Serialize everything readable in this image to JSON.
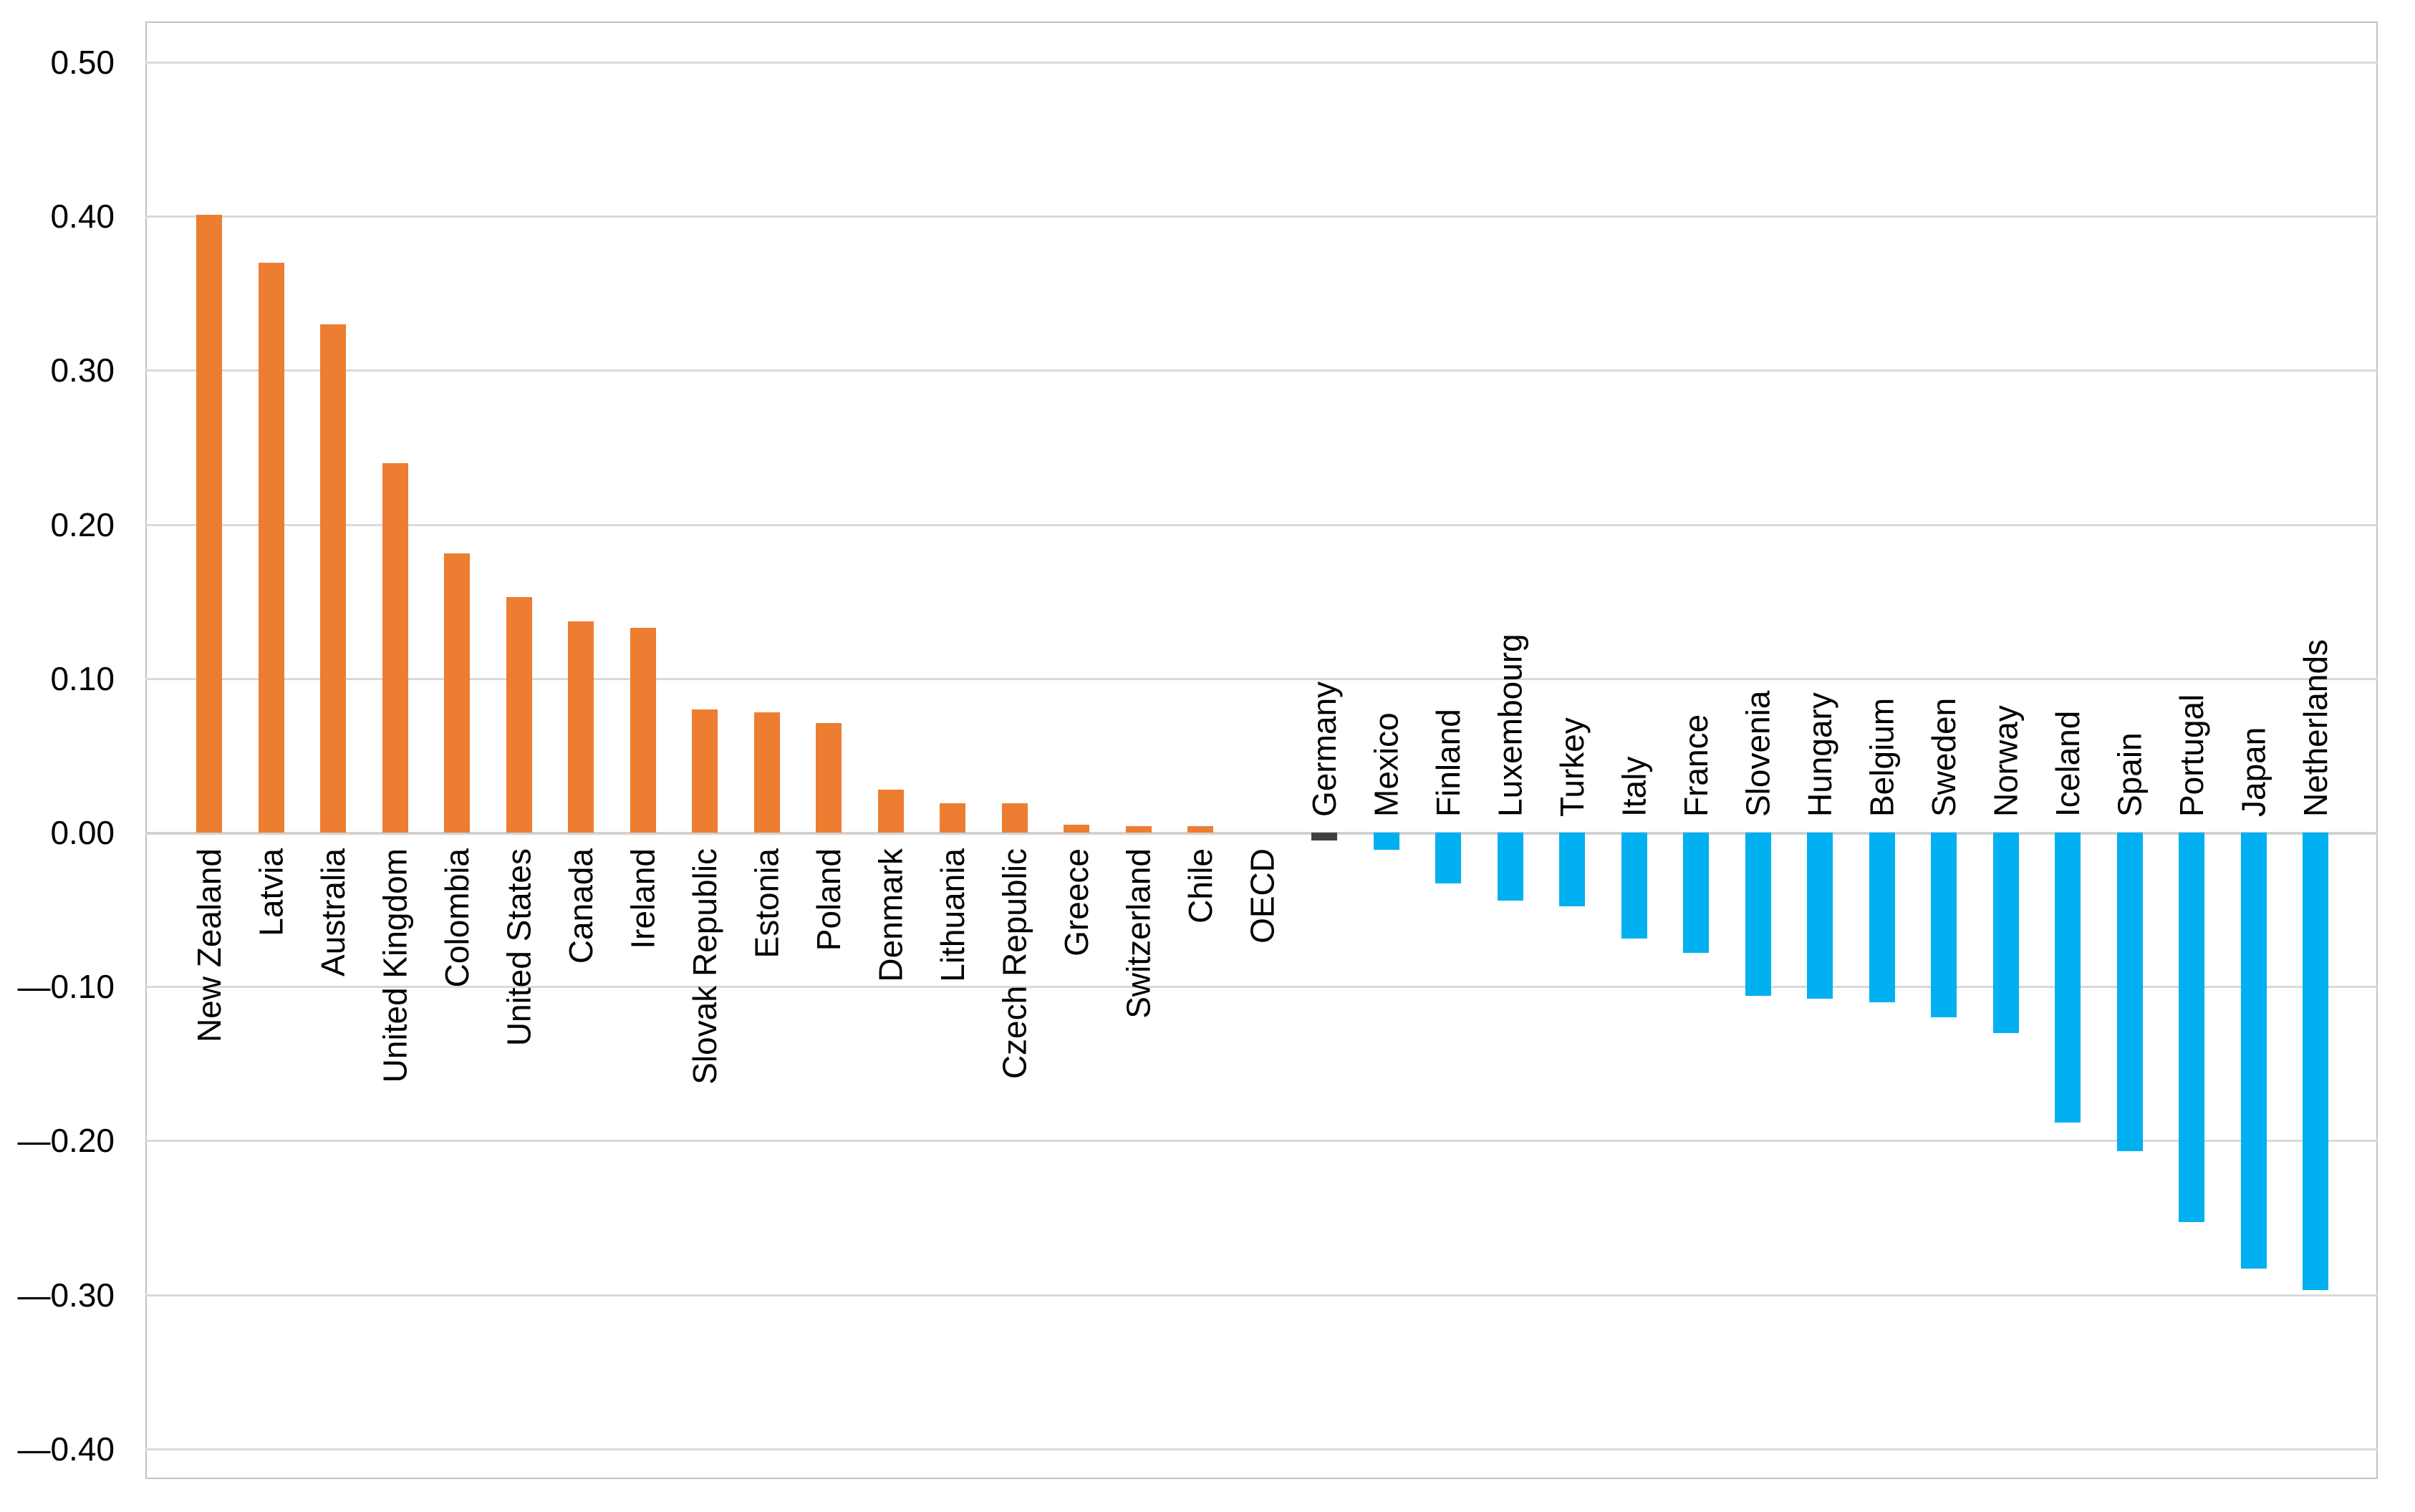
{
  "chart_data": {
    "type": "bar",
    "title": "",
    "xlabel": "",
    "ylabel": "",
    "ylim": [
      -0.42,
      0.53
    ],
    "grid": "horizontal",
    "legend": "none",
    "bar_colors": {
      "positive": "#ED7D31",
      "negative": "#00B0F0",
      "highlight": "#404040"
    },
    "yticks": [
      {
        "label": "0.50",
        "value": 0.5
      },
      {
        "label": "0.40",
        "value": 0.4
      },
      {
        "label": "0.30",
        "value": 0.3
      },
      {
        "label": "0.20",
        "value": 0.2
      },
      {
        "label": "0.10",
        "value": 0.1
      },
      {
        "label": "0.00",
        "value": 0.0
      },
      {
        "label": "—0.10",
        "value": -0.1
      },
      {
        "label": "—0.20",
        "value": -0.2
      },
      {
        "label": "—0.30",
        "value": -0.3
      },
      {
        "label": "—0.40",
        "value": -0.4
      }
    ],
    "categories": [
      {
        "label": "New Zealand",
        "value": 0.401,
        "color": "positive"
      },
      {
        "label": "Latvia",
        "value": 0.37,
        "color": "positive"
      },
      {
        "label": "Australia",
        "value": 0.33,
        "color": "positive"
      },
      {
        "label": "United Kingdom",
        "value": 0.24,
        "color": "positive"
      },
      {
        "label": "Colombia",
        "value": 0.181,
        "color": "positive"
      },
      {
        "label": "United States",
        "value": 0.153,
        "color": "positive"
      },
      {
        "label": "Canada",
        "value": 0.137,
        "color": "positive"
      },
      {
        "label": "Ireland",
        "value": 0.133,
        "color": "positive"
      },
      {
        "label": "Slovak Republic",
        "value": 0.08,
        "color": "positive"
      },
      {
        "label": "Estonia",
        "value": 0.078,
        "color": "positive"
      },
      {
        "label": "Poland",
        "value": 0.071,
        "color": "positive"
      },
      {
        "label": "Denmark",
        "value": 0.028,
        "color": "positive"
      },
      {
        "label": "Lithuania",
        "value": 0.019,
        "color": "positive"
      },
      {
        "label": "Czech Republic",
        "value": 0.019,
        "color": "positive"
      },
      {
        "label": "Greece",
        "value": 0.005,
        "color": "positive"
      },
      {
        "label": "Switzerland",
        "value": 0.004,
        "color": "positive"
      },
      {
        "label": "Chile",
        "value": 0.004,
        "color": "positive"
      },
      {
        "label": "OECD",
        "value": 0.0,
        "color": "highlight"
      },
      {
        "label": "Germany",
        "value": -0.005,
        "color": "highlight"
      },
      {
        "label": "Mexico",
        "value": -0.011,
        "color": "negative"
      },
      {
        "label": "Finland",
        "value": -0.033,
        "color": "negative"
      },
      {
        "label": "Luxembourg",
        "value": -0.044,
        "color": "negative"
      },
      {
        "label": "Turkey",
        "value": -0.048,
        "color": "negative"
      },
      {
        "label": "Italy",
        "value": -0.069,
        "color": "negative"
      },
      {
        "label": "France",
        "value": -0.078,
        "color": "negative"
      },
      {
        "label": "Slovenia",
        "value": -0.106,
        "color": "negative"
      },
      {
        "label": "Hungary",
        "value": -0.108,
        "color": "negative"
      },
      {
        "label": "Belgium",
        "value": -0.11,
        "color": "negative"
      },
      {
        "label": "Sweden",
        "value": -0.12,
        "color": "negative"
      },
      {
        "label": "Norway",
        "value": -0.13,
        "color": "negative"
      },
      {
        "label": "Iceland",
        "value": -0.188,
        "color": "negative"
      },
      {
        "label": "Spain",
        "value": -0.207,
        "color": "negative"
      },
      {
        "label": "Portugal",
        "value": -0.253,
        "color": "negative"
      },
      {
        "label": "Japan",
        "value": -0.283,
        "color": "negative"
      },
      {
        "label": "Netherlands",
        "value": -0.297,
        "color": "negative"
      }
    ]
  }
}
